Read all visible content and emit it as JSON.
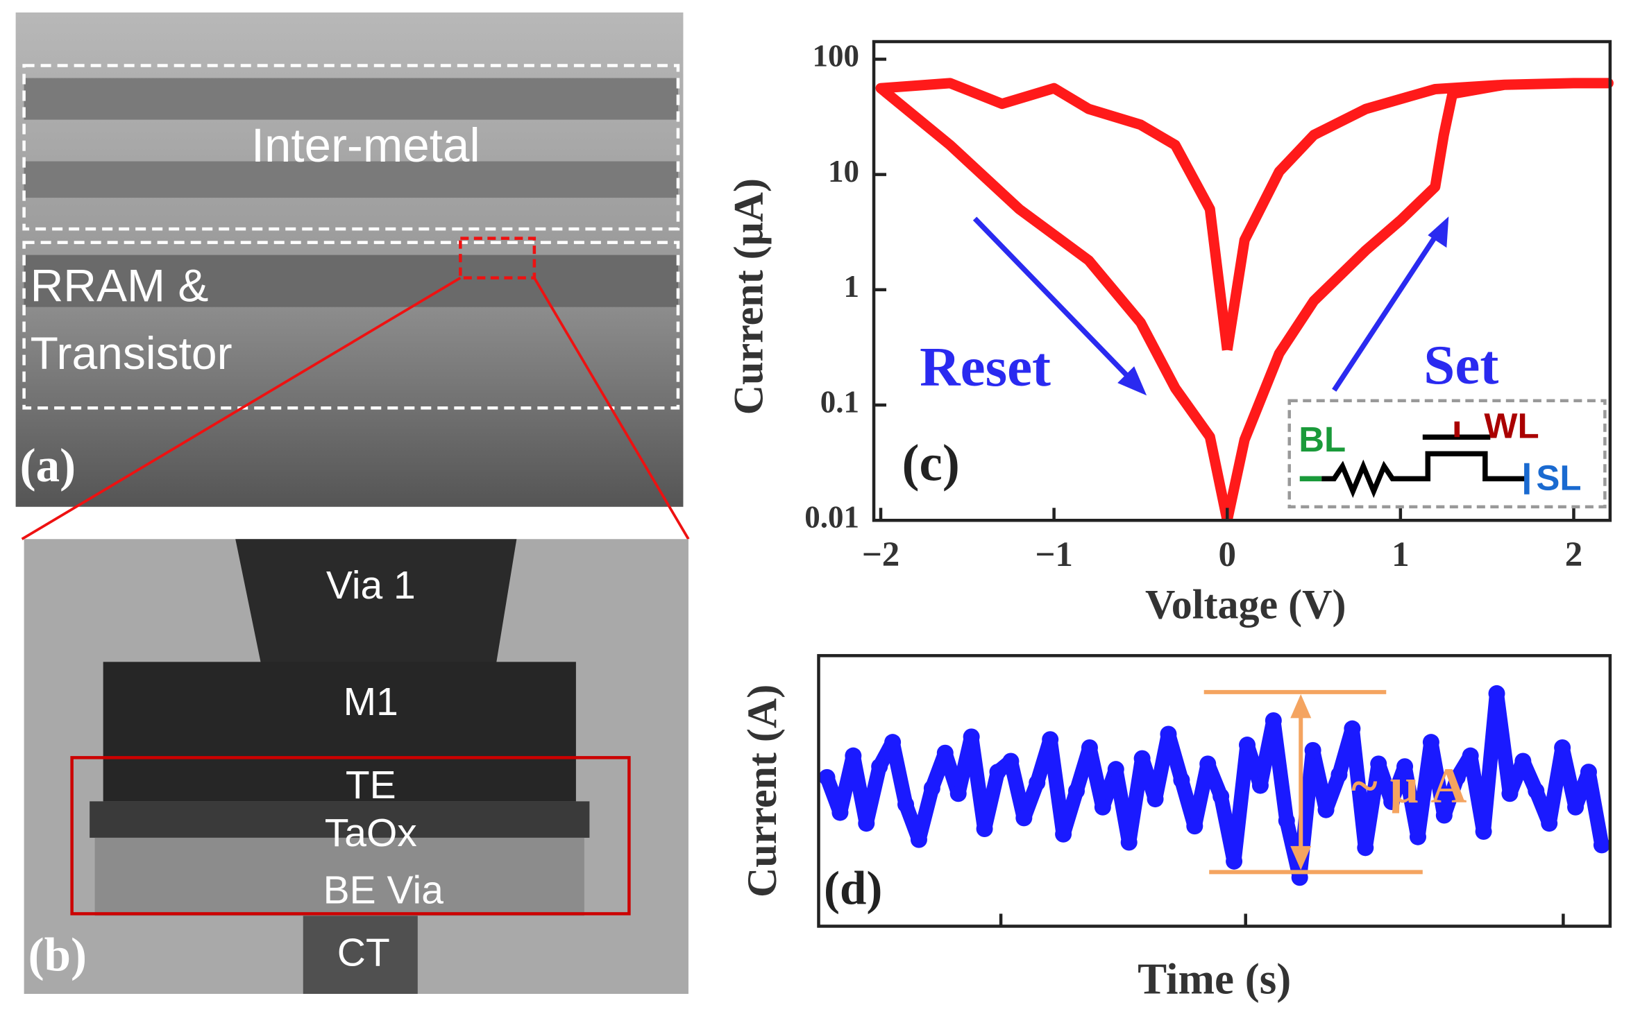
{
  "panels": {
    "a": {
      "label": "(a)",
      "texts": [
        "Inter-metal",
        "RRAM &",
        "Transistor"
      ]
    },
    "b": {
      "label": "(b)",
      "texts": [
        "Via 1",
        "M1",
        "TE",
        "TaOx",
        "BE Via",
        "CT"
      ]
    }
  },
  "chart_data": [
    {
      "type": "line",
      "panel_label": "(c)",
      "x_label": "Voltage (V)",
      "y_label": "Current (μA)",
      "log_y": true,
      "xlim": [
        -2.04,
        2.21
      ],
      "ylim": [
        0.01,
        142
      ],
      "xticks": [
        {
          "value": -2,
          "label": "−2"
        },
        {
          "value": -1,
          "label": "−1"
        },
        0,
        1,
        2
      ],
      "yticks": [
        0.01,
        0.1,
        1,
        10,
        100
      ],
      "inset_labels": {
        "bl": "BL",
        "wl": "WL",
        "sl": "SL"
      },
      "series": [
        {
          "name": "Reset",
          "color": "#ff1a1a",
          "x": [
            0,
            -0.1,
            -0.3,
            -0.5,
            -0.8,
            -1,
            -1.3,
            -1.6,
            -2,
            -1.6,
            -1.2,
            -0.8,
            -0.5,
            -0.3,
            -0.1,
            0
          ],
          "values": [
            0.3,
            5,
            18,
            27,
            37,
            56,
            41,
            62,
            56,
            18,
            5,
            1.8,
            0.52,
            0.14,
            0.053,
            0.01
          ]
        },
        {
          "name": "Set",
          "color": "#ff1a1a",
          "x": [
            0,
            0.1,
            0.3,
            0.5,
            0.8,
            1,
            1.2,
            1.25,
            1.3,
            1.6,
            2,
            2.2,
            2,
            1.6,
            1.2,
            0.8,
            0.5,
            0.3,
            0.1,
            0
          ],
          "values": [
            0.01,
            0.05,
            0.28,
            0.8,
            2.2,
            4,
            7.8,
            22,
            50,
            60,
            62,
            62,
            62,
            60,
            55,
            37,
            22,
            10.6,
            2.7,
            0.3
          ]
        }
      ]
    },
    {
      "type": "scatter",
      "panel_label": "(d)",
      "x_label": "Time (s)",
      "y_label": "Current (A)",
      "annotation": "~ μ A",
      "color": "#1a1aff",
      "ylim": [
        0,
        10
      ],
      "values": [
        5.5,
        4.2,
        6.3,
        3.8,
        5.9,
        6.8,
        4.5,
        3.2,
        5.1,
        6.4,
        4.9,
        7.0,
        3.6,
        5.7,
        6.1,
        4.0,
        5.3,
        6.9,
        3.4,
        5.0,
        6.6,
        4.4,
        5.8,
        3.1,
        6.2,
        4.7,
        7.1,
        5.4,
        3.7,
        6.0,
        4.8,
        2.4,
        6.7,
        5.2,
        7.6,
        3.9,
        1.8,
        6.5,
        4.3,
        5.6,
        7.3,
        2.9,
        6.0,
        4.6,
        5.9,
        3.3,
        6.8,
        4.1,
        5.5,
        6.3,
        3.5,
        8.6,
        4.9,
        6.1,
        5.0,
        3.8,
        6.6,
        4.4,
        5.7,
        3.0
      ]
    }
  ]
}
